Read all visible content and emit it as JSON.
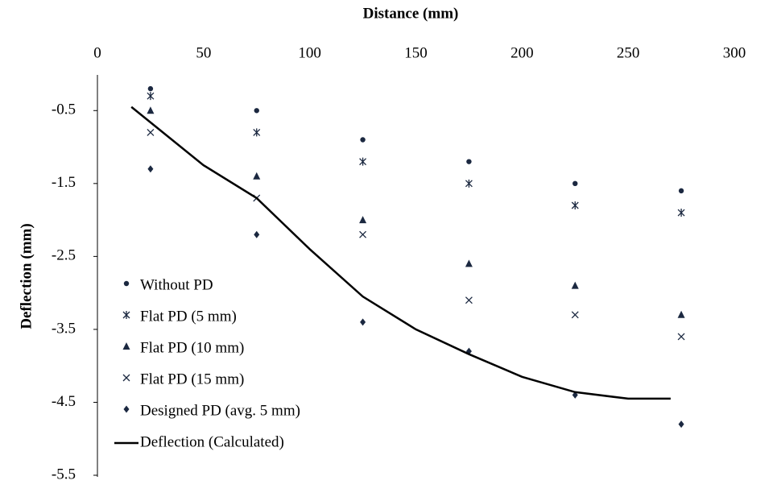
{
  "chart_data": {
    "type": "scatter",
    "x_label": "Distance (mm)",
    "y_label": "Deflection (mm)",
    "xlim": [
      0,
      300
    ],
    "xticks": [
      0,
      50,
      100,
      150,
      200,
      250,
      300
    ],
    "ylim": [
      -5.5,
      0
    ],
    "yticks": [
      -0.5,
      -1.5,
      -2.5,
      -3.5,
      -4.5,
      -5.5
    ],
    "legend": "lower left",
    "series": [
      {
        "name": "Without PD",
        "color": "#1b2840",
        "marker": "circle",
        "x": [
          25,
          75,
          125,
          175,
          225,
          275
        ],
        "values": [
          -0.2,
          -0.5,
          -0.9,
          -1.2,
          -1.5,
          -1.6
        ]
      },
      {
        "name": "Flat PD (5 mm)",
        "color": "#1b2840",
        "marker": "asterisk",
        "x": [
          25,
          75,
          125,
          175,
          225,
          275
        ],
        "values": [
          -0.3,
          -0.8,
          -1.2,
          -1.5,
          -1.8,
          -1.9
        ]
      },
      {
        "name": "Flat PD (10 mm)",
        "color": "#1b2840",
        "marker": "triangle",
        "x": [
          25,
          75,
          125,
          175,
          225,
          275
        ],
        "values": [
          -0.5,
          -1.4,
          -2.0,
          -2.6,
          -2.9,
          -3.3
        ]
      },
      {
        "name": "Flat PD (15 mm)",
        "color": "#1b2840",
        "marker": "x",
        "x": [
          25,
          75,
          125,
          175,
          225,
          275
        ],
        "values": [
          -0.8,
          -1.7,
          -2.2,
          -3.1,
          -3.3,
          -3.6
        ]
      },
      {
        "name": "Designed PD (avg. 5 mm)",
        "color": "#1b2840",
        "marker": "diamond",
        "x": [
          25,
          75,
          125,
          175,
          225,
          275
        ],
        "values": [
          -1.3,
          -2.2,
          -3.4,
          -3.8,
          -4.4,
          -4.8
        ]
      },
      {
        "name": "Deflection (Calculated)",
        "color": "#000000",
        "marker": "line",
        "x": [
          16,
          50,
          75,
          100,
          125,
          150,
          175,
          200,
          225,
          250,
          270
        ],
        "values": [
          -0.45,
          -1.25,
          -1.7,
          -2.4,
          -3.05,
          -3.5,
          -3.84,
          -4.15,
          -4.36,
          -4.45,
          -4.45
        ]
      }
    ]
  }
}
